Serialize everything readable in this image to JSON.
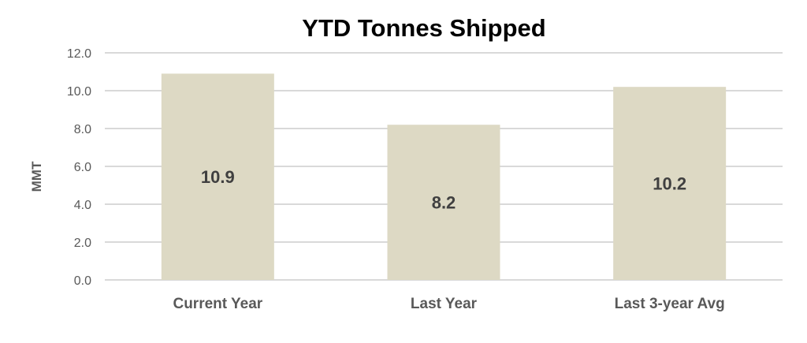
{
  "chart_data": {
    "type": "bar",
    "title": "YTD Tonnes Shipped",
    "xlabel": "",
    "ylabel": "MMT",
    "categories": [
      "Current Year",
      "Last Year",
      "Last 3-year Avg"
    ],
    "values": [
      10.9,
      8.2,
      10.2
    ],
    "data_labels": [
      "10.9",
      "8.2",
      "10.2"
    ],
    "ylim": [
      0,
      12
    ],
    "yticks": [
      "0.0",
      "2.0",
      "4.0",
      "6.0",
      "8.0",
      "10.0",
      "12.0"
    ],
    "grid": true,
    "legend": "none",
    "bar_color": "#ddd9c4"
  }
}
